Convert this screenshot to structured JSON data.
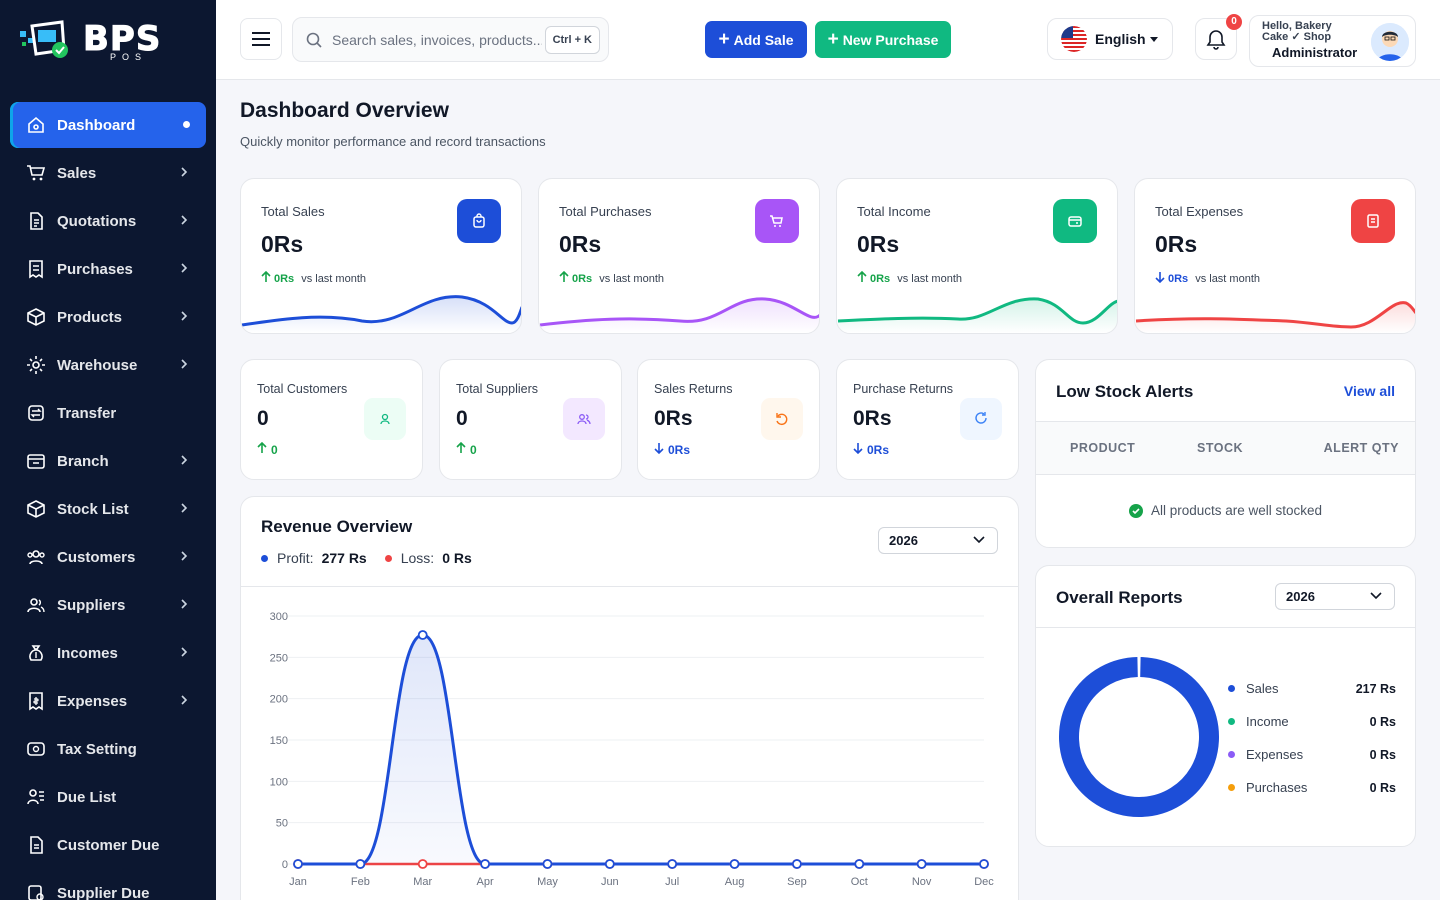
{
  "brand": {
    "name": "BPS",
    "sub": "POS"
  },
  "sidebar": {
    "items": [
      {
        "label": "Dashboard",
        "icon": "home-icon",
        "active": true
      },
      {
        "label": "Sales",
        "icon": "cart-icon",
        "chevron": true
      },
      {
        "label": "Quotations",
        "icon": "document-icon",
        "chevron": true
      },
      {
        "label": "Purchases",
        "icon": "receipt-icon",
        "chevron": true
      },
      {
        "label": "Products",
        "icon": "box-icon",
        "chevron": true
      },
      {
        "label": "Warehouse",
        "icon": "warehouse-icon",
        "chevron": true
      },
      {
        "label": "Transfer",
        "icon": "transfer-icon",
        "chevron": false
      },
      {
        "label": "Branch",
        "icon": "branch-icon",
        "chevron": true
      },
      {
        "label": "Stock List",
        "icon": "stock-icon",
        "chevron": true
      },
      {
        "label": "Customers",
        "icon": "customers-icon",
        "chevron": true
      },
      {
        "label": "Suppliers",
        "icon": "suppliers-icon",
        "chevron": true
      },
      {
        "label": "Incomes",
        "icon": "money-bag-icon",
        "chevron": true
      },
      {
        "label": "Expenses",
        "icon": "expense-icon",
        "chevron": true
      },
      {
        "label": "Tax Setting",
        "icon": "tax-icon",
        "chevron": false
      },
      {
        "label": "Due List",
        "icon": "due-list-icon",
        "chevron": false
      },
      {
        "label": "Customer Due",
        "icon": "customer-due-icon",
        "chevron": false
      },
      {
        "label": "Supplier Due",
        "icon": "supplier-due-icon",
        "chevron": false
      }
    ]
  },
  "topbar": {
    "search_placeholder": "Search sales, invoices, products...",
    "shortcut": "Ctrl + K",
    "add_sale": "Add Sale",
    "new_purchase": "New Purchase",
    "language": "English",
    "notifications": "0",
    "greeting": "Hello, Bakery Cake ✓ Shop",
    "role": "Administrator"
  },
  "page": {
    "title": "Dashboard Overview",
    "subtitle": "Quickly monitor performance and record transactions"
  },
  "stats": [
    {
      "label": "Total Sales",
      "value": "0Rs",
      "change": "0Rs",
      "note": "vs last month",
      "trend": "up",
      "color": "#1d4ed8",
      "icon": "bag-icon"
    },
    {
      "label": "Total Purchases",
      "value": "0Rs",
      "change": "0Rs",
      "note": "vs last month",
      "trend": "up",
      "color": "#a855f7",
      "icon": "cart-icon"
    },
    {
      "label": "Total Income",
      "value": "0Rs",
      "change": "0Rs",
      "note": "vs last month",
      "trend": "up",
      "color": "#10b981",
      "icon": "wallet-icon"
    },
    {
      "label": "Total Expenses",
      "value": "0Rs",
      "change": "0Rs",
      "note": "vs last month",
      "trend": "down",
      "color": "#ef4444",
      "icon": "receipt-icon"
    }
  ],
  "mini_stats": [
    {
      "label": "Total Customers",
      "value": "0",
      "change": "0",
      "trend": "up",
      "icon": "user-icon"
    },
    {
      "label": "Total Suppliers",
      "value": "0",
      "change": "0",
      "trend": "up",
      "icon": "users-icon"
    },
    {
      "label": "Sales Returns",
      "value": "0Rs",
      "change": "0Rs",
      "trend": "down",
      "icon": "undo-icon"
    },
    {
      "label": "Purchase Returns",
      "value": "0Rs",
      "change": "0Rs",
      "trend": "down",
      "icon": "refresh-icon"
    }
  ],
  "revenue": {
    "title": "Revenue Overview",
    "profit_label": "Profit:",
    "profit_value": "277 Rs",
    "loss_label": "Loss:",
    "loss_value": "0 Rs",
    "year": "2026"
  },
  "low_stock": {
    "title": "Low Stock Alerts",
    "view_all": "View all",
    "columns": [
      "PRODUCT",
      "STOCK",
      "ALERT QTY"
    ],
    "empty": "All products are well stocked"
  },
  "reports": {
    "title": "Overall Reports",
    "year": "2026",
    "items": [
      {
        "label": "Sales",
        "value": "217 Rs",
        "color": "#1d4ed8"
      },
      {
        "label": "Income",
        "value": "0 Rs",
        "color": "#10b981"
      },
      {
        "label": "Expenses",
        "value": "0 Rs",
        "color": "#8b5cf6"
      },
      {
        "label": "Purchases",
        "value": "0 Rs",
        "color": "#f59e0b"
      }
    ]
  },
  "chart_data": [
    {
      "type": "area",
      "categories": [
        "Jan",
        "Feb",
        "Mar",
        "Apr",
        "May",
        "Jun",
        "Jul",
        "Aug",
        "Sep",
        "Oct",
        "Nov",
        "Dec"
      ],
      "series": [
        {
          "name": "Profit",
          "values": [
            0,
            0,
            277,
            0,
            0,
            0,
            0,
            0,
            0,
            0,
            0,
            0
          ],
          "color": "#1d4ed8"
        },
        {
          "name": "Loss",
          "values": [
            0,
            0,
            0,
            0,
            0,
            0,
            0,
            0,
            0,
            0,
            0,
            0
          ],
          "color": "#ef4444"
        }
      ],
      "yticks": [
        0,
        50,
        100,
        150,
        200,
        250,
        300
      ],
      "ylim": [
        0,
        300
      ],
      "grid": true
    },
    {
      "type": "pie",
      "labels": [
        "Sales",
        "Income",
        "Expenses",
        "Purchases"
      ],
      "values": [
        217,
        0,
        0,
        0
      ],
      "colors": [
        "#1d4ed8",
        "#10b981",
        "#8b5cf6",
        "#f59e0b"
      ]
    }
  ]
}
